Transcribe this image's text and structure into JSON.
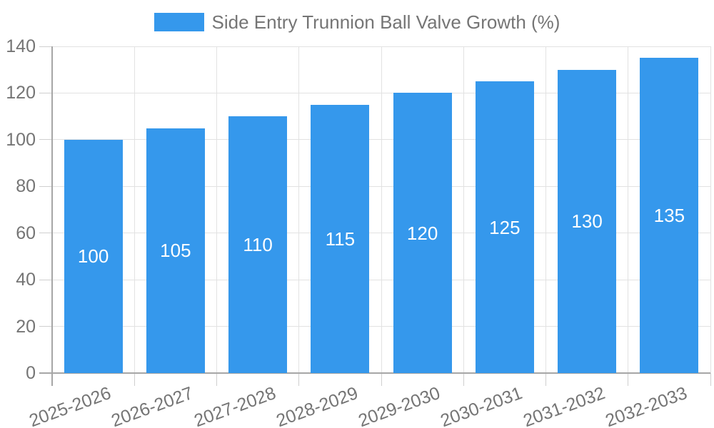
{
  "chart": {
    "legend": {
      "label": "Side Entry Trunnion Ball Valve Growth (%)",
      "swatch_color": "#3598EC"
    },
    "colors": {
      "bar": "#3598EC",
      "bar_label": "#FFFFFF",
      "axis_text": "#757575",
      "grid_line": "#E2E2E2",
      "tick_mark": "#CFCFCF",
      "axis_line": "#A6A6A6",
      "background": "#FFFFFF"
    }
  },
  "chart_data": {
    "type": "bar",
    "title": "Side Entry Trunnion Ball Valve Growth (%)",
    "categories": [
      "2025-2026",
      "2026-2027",
      "2027-2028",
      "2028-2029",
      "2029-2030",
      "2030-2031",
      "2031-2032",
      "2032-2033"
    ],
    "series": [
      {
        "name": "Side Entry Trunnion Ball Valve Growth (%)",
        "values": [
          100,
          105,
          110,
          115,
          120,
          125,
          130,
          135
        ]
      }
    ],
    "bar_value_labels": [
      "100",
      "105",
      "110",
      "115",
      "120",
      "125",
      "130",
      "135"
    ],
    "xlabel": "",
    "ylabel": "",
    "ylim": [
      0,
      140
    ],
    "yticks": [
      0,
      20,
      40,
      60,
      80,
      100,
      120,
      140
    ],
    "grid": true,
    "legend_position": "top",
    "x_tick_rotation_deg": -20
  }
}
